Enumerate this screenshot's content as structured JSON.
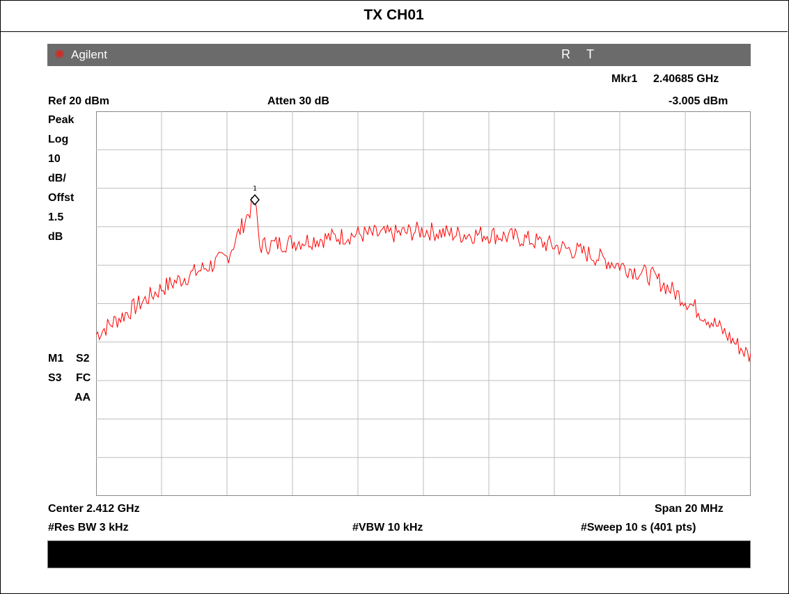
{
  "page": {
    "title": "TX CH01"
  },
  "analyzer": {
    "brand": "Agilent",
    "logo_icon": "agilent-spark-icon",
    "flag_r": "R",
    "flag_t": "T",
    "banner_color": "#6b6b6b"
  },
  "marker": {
    "label": "Mkr1",
    "freq": "2.40685 GHz",
    "level": "-3.005 dBm",
    "tag": "1"
  },
  "settings": {
    "ref": "Ref 20 dBm",
    "atten": "Atten 30 dB"
  },
  "left_labels": {
    "peak": "Peak",
    "log": "Log",
    "scale": "10",
    "unit": "dB/",
    "offst": "Offst",
    "offst_value": "1.5",
    "offst_unit": "dB",
    "m1": "M1",
    "s2": "S2",
    "s3": "S3",
    "fc": "FC",
    "aa": "AA"
  },
  "footer": {
    "center": "Center 2.412 GHz",
    "span": "Span 20 MHz",
    "rbw": "#Res BW 3 kHz",
    "vbw": "#VBW 10 kHz",
    "sweep": "#Sweep 10 s (401 pts)"
  },
  "chart_data": {
    "type": "line",
    "x_unit": "GHz",
    "y_unit": "dBm",
    "xlim": [
      2.402,
      2.422
    ],
    "ylim": [
      -80,
      20
    ],
    "grid": true,
    "series": [
      {
        "color": "#ff0000",
        "x": [
          2.402,
          2.403,
          2.404,
          2.405,
          2.406,
          2.40685,
          2.407,
          2.408,
          2.409,
          2.41,
          2.411,
          2.412,
          2.413,
          2.414,
          2.415,
          2.416,
          2.417,
          2.418,
          2.419,
          2.42,
          2.421,
          2.422
        ],
        "y": [
          -38,
          -32,
          -26,
          -22,
          -18,
          -3.005,
          -15,
          -14,
          -13,
          -12,
          -12,
          -11,
          -12,
          -12,
          -13,
          -15,
          -17,
          -20,
          -23,
          -29,
          -36,
          -44
        ]
      }
    ],
    "marker": {
      "x": 2.40685,
      "y": -3.005,
      "label": "1"
    }
  }
}
